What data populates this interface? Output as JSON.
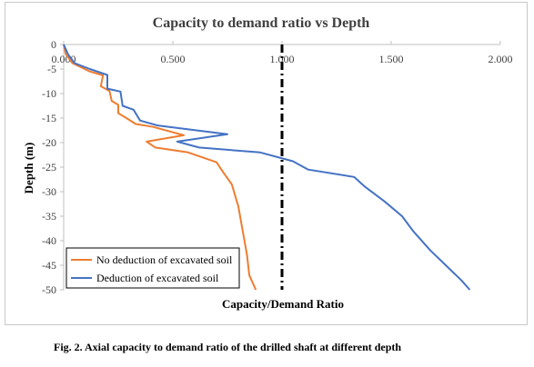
{
  "chart_data": {
    "type": "line",
    "title": "Capacity to demand ratio vs Depth",
    "xlabel": "Capacity/Demand Ratio",
    "ylabel": "Depth (m)",
    "xlim": [
      0,
      2
    ],
    "ylim": [
      -50,
      0
    ],
    "x_ticks": [
      "0.000",
      "0.500",
      "1.000",
      "1.500",
      "2.000"
    ],
    "y_ticks": [
      "0",
      "-5",
      "-10",
      "-15",
      "-20",
      "-25",
      "-30",
      "-35",
      "-40",
      "-45",
      "-50"
    ],
    "grid": false,
    "legend_position": "bottom-left",
    "reference_line": {
      "x": 1.0,
      "style": "dash-dot",
      "color": "#000000"
    },
    "series": [
      {
        "name": "No deduction of excavated soil",
        "color": "#ED7D31",
        "points": [
          [
            0.0,
            0
          ],
          [
            0.01,
            -2
          ],
          [
            0.04,
            -3.8
          ],
          [
            0.12,
            -5.5
          ],
          [
            0.18,
            -6.3
          ],
          [
            0.17,
            -8.5
          ],
          [
            0.21,
            -9.5
          ],
          [
            0.22,
            -11.5
          ],
          [
            0.25,
            -12.3
          ],
          [
            0.25,
            -14.0
          ],
          [
            0.28,
            -14.8
          ],
          [
            0.33,
            -16.2
          ],
          [
            0.41,
            -16.8
          ],
          [
            0.55,
            -18.5
          ],
          [
            0.38,
            -19.8
          ],
          [
            0.42,
            -21.0
          ],
          [
            0.57,
            -22.0
          ],
          [
            0.7,
            -24.0
          ],
          [
            0.73,
            -26.0
          ],
          [
            0.77,
            -28.5
          ],
          [
            0.8,
            -33
          ],
          [
            0.82,
            -38
          ],
          [
            0.84,
            -43
          ],
          [
            0.85,
            -47
          ],
          [
            0.88,
            -50
          ]
        ]
      },
      {
        "name": "Deduction of excavated soil",
        "color": "#4472C4",
        "points": [
          [
            0.0,
            0
          ],
          [
            0.02,
            -2
          ],
          [
            0.05,
            -3.8
          ],
          [
            0.12,
            -5
          ],
          [
            0.2,
            -6.2
          ],
          [
            0.2,
            -9.0
          ],
          [
            0.26,
            -9.6
          ],
          [
            0.27,
            -12.5
          ],
          [
            0.32,
            -13.3
          ],
          [
            0.35,
            -15.5
          ],
          [
            0.43,
            -16.5
          ],
          [
            0.75,
            -18.3
          ],
          [
            0.52,
            -19.8
          ],
          [
            0.62,
            -21.0
          ],
          [
            0.9,
            -22.0
          ],
          [
            1.05,
            -23.8
          ],
          [
            1.12,
            -25.5
          ],
          [
            1.33,
            -27.0
          ],
          [
            1.38,
            -29
          ],
          [
            1.47,
            -32
          ],
          [
            1.55,
            -35
          ],
          [
            1.6,
            -38
          ],
          [
            1.68,
            -42
          ],
          [
            1.75,
            -45
          ],
          [
            1.82,
            -48
          ],
          [
            1.86,
            -50
          ]
        ]
      }
    ]
  },
  "caption": "Fig. 2. Axial capacity to demand ratio of the drilled shaft at different depth"
}
